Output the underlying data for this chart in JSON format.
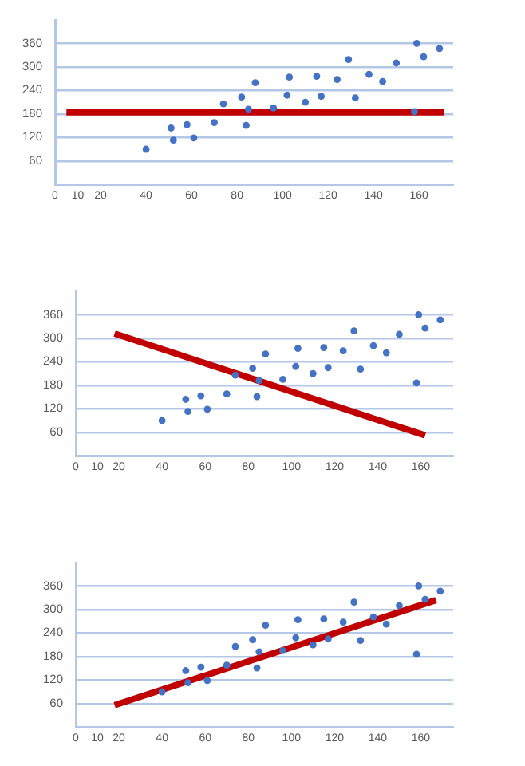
{
  "chart_data": [
    {
      "type": "scatter",
      "xlim": [
        0,
        175
      ],
      "xticks": [
        0,
        10,
        20,
        40,
        60,
        80,
        100,
        120,
        140,
        160
      ],
      "ylim": [
        0,
        420
      ],
      "yticks": [
        60,
        120,
        180,
        240,
        300,
        360
      ],
      "grid": "y",
      "series": [
        {
          "marker": "circle",
          "color": "#4472c4",
          "x": [
            40,
            51,
            52,
            58,
            61,
            70,
            74,
            82,
            84,
            85,
            88,
            96,
            102,
            103,
            110,
            115,
            117,
            124,
            129,
            132,
            138,
            144,
            150,
            158,
            159,
            162,
            169
          ],
          "values": [
            90,
            144,
            113,
            153,
            119,
            158,
            206,
            223,
            151,
            192,
            260,
            195,
            228,
            274,
            210,
            276,
            225,
            268,
            319,
            221,
            281,
            263,
            310,
            186,
            360,
            326,
            347
          ]
        },
        {
          "type": "line",
          "marker": "none",
          "color": "#c00000",
          "x": [
            5,
            171
          ],
          "values": [
            184,
            184
          ]
        }
      ]
    },
    {
      "type": "scatter",
      "xlim": [
        0,
        175
      ],
      "xticks": [
        0,
        10,
        20,
        40,
        60,
        80,
        100,
        120,
        140,
        160
      ],
      "ylim": [
        0,
        420
      ],
      "yticks": [
        60,
        120,
        180,
        240,
        300,
        360
      ],
      "grid": "y",
      "series": [
        {
          "marker": "circle",
          "color": "#4472c4",
          "x": [
            40,
            51,
            52,
            58,
            61,
            70,
            74,
            82,
            84,
            85,
            88,
            96,
            102,
            103,
            110,
            115,
            117,
            124,
            129,
            132,
            138,
            144,
            150,
            158,
            159,
            162,
            169
          ],
          "values": [
            90,
            144,
            113,
            153,
            119,
            158,
            206,
            223,
            151,
            192,
            260,
            195,
            228,
            274,
            210,
            276,
            225,
            268,
            319,
            221,
            281,
            263,
            310,
            186,
            360,
            326,
            347
          ]
        },
        {
          "type": "line",
          "marker": "none",
          "color": "#c00000",
          "x": [
            18,
            162
          ],
          "values": [
            312,
            52
          ]
        }
      ]
    },
    {
      "type": "scatter",
      "xlim": [
        0,
        175
      ],
      "xticks": [
        0,
        10,
        20,
        40,
        60,
        80,
        100,
        120,
        140,
        160
      ],
      "ylim": [
        0,
        420
      ],
      "yticks": [
        60,
        120,
        180,
        240,
        300,
        360
      ],
      "grid": "y",
      "series": [
        {
          "marker": "circle",
          "color": "#4472c4",
          "x": [
            40,
            51,
            52,
            58,
            61,
            70,
            74,
            82,
            84,
            85,
            88,
            96,
            102,
            103,
            110,
            115,
            117,
            124,
            129,
            132,
            138,
            144,
            150,
            158,
            159,
            162,
            169
          ],
          "values": [
            90,
            144,
            113,
            153,
            119,
            158,
            206,
            223,
            151,
            192,
            260,
            195,
            228,
            274,
            210,
            276,
            225,
            268,
            319,
            221,
            281,
            263,
            310,
            186,
            360,
            326,
            347
          ]
        },
        {
          "type": "line",
          "marker": "none",
          "color": "#c00000",
          "x": [
            18,
            167
          ],
          "values": [
            56,
            324
          ]
        }
      ]
    }
  ]
}
